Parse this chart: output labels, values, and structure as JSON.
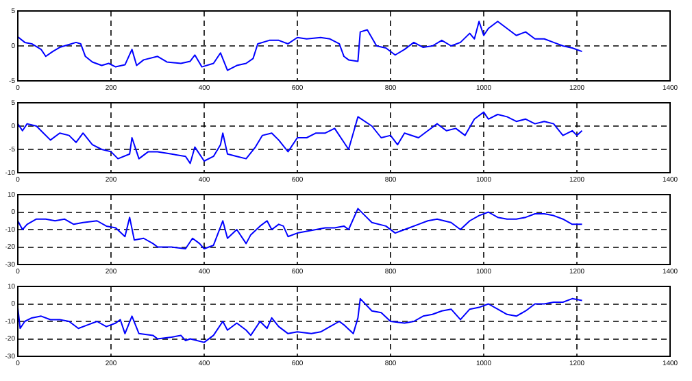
{
  "chart_data": [
    {
      "type": "line",
      "x": [
        0,
        15,
        30,
        50,
        60,
        75,
        90,
        110,
        125,
        135,
        145,
        160,
        180,
        195,
        210,
        230,
        245,
        255,
        270,
        300,
        320,
        350,
        370,
        380,
        395,
        420,
        435,
        450,
        470,
        490,
        505,
        515,
        540,
        560,
        580,
        600,
        620,
        650,
        670,
        690,
        700,
        710,
        730,
        735,
        750,
        770,
        790,
        810,
        830,
        850,
        870,
        890,
        910,
        930,
        950,
        970,
        980,
        990,
        1000,
        1010,
        1030,
        1050,
        1070,
        1090,
        1110,
        1130,
        1150,
        1170,
        1190,
        1211
      ],
      "series": [
        {
          "color": "#0000ff",
          "values": [
            1.3,
            0.5,
            0.3,
            -0.5,
            -1.5,
            -0.8,
            -0.2,
            0.2,
            0.5,
            0.3,
            -1.5,
            -2.3,
            -2.8,
            -2.5,
            -3,
            -2.7,
            -0.5,
            -2.8,
            -2,
            -1.5,
            -2.3,
            -2.5,
            -2.2,
            -1.3,
            -3,
            -2.5,
            -1,
            -3.5,
            -2.8,
            -2.5,
            -1.8,
            0.3,
            0.8,
            0.8,
            0.3,
            1.2,
            1,
            1.2,
            1,
            0.3,
            -1.5,
            -2,
            -2.2,
            2,
            2.3,
            0,
            -0.3,
            -1.3,
            -0.5,
            0.5,
            -0.2,
            0,
            0.8,
            0,
            0.5,
            1.8,
            1,
            3.5,
            1.5,
            2.5,
            3.5,
            2.5,
            1.5,
            2,
            1,
            1,
            0.5,
            0,
            -0.3,
            -0.8
          ]
        }
      ],
      "xlim": [
        0,
        1400
      ],
      "xticks": [
        0,
        200,
        400,
        600,
        800,
        1000,
        1200,
        1400
      ],
      "ylim": [
        -5,
        5
      ],
      "yticks": [
        -5,
        0,
        5
      ],
      "grid": true,
      "marker": "none",
      "line_style": "solid"
    },
    {
      "type": "line",
      "x": [
        0,
        10,
        20,
        40,
        55,
        70,
        90,
        110,
        125,
        140,
        160,
        180,
        200,
        215,
        240,
        245,
        260,
        280,
        300,
        330,
        360,
        370,
        380,
        400,
        420,
        435,
        440,
        450,
        470,
        490,
        510,
        525,
        545,
        560,
        580,
        600,
        620,
        640,
        660,
        680,
        700,
        710,
        730,
        760,
        780,
        800,
        815,
        830,
        860,
        880,
        900,
        920,
        940,
        960,
        980,
        1000,
        1010,
        1030,
        1050,
        1070,
        1090,
        1110,
        1130,
        1150,
        1170,
        1190,
        1200,
        1211
      ],
      "series": [
        {
          "color": "#0000ff",
          "values": [
            0.5,
            -1,
            0.5,
            0,
            -1.5,
            -3,
            -1.5,
            -2,
            -3.5,
            -1.5,
            -4,
            -5,
            -5.5,
            -7,
            -6,
            -2.5,
            -7,
            -5.5,
            -5.5,
            -6,
            -6.5,
            -8,
            -4.5,
            -7.5,
            -6.5,
            -4,
            -1.5,
            -6,
            -6.5,
            -7,
            -4.5,
            -2,
            -1.5,
            -3,
            -5.5,
            -2.5,
            -2.5,
            -1.5,
            -1.5,
            -0.5,
            -3.5,
            -5,
            2,
            0,
            -2.5,
            -2,
            -4,
            -1.5,
            -2.5,
            -1,
            0.5,
            -1,
            -0.5,
            -2,
            1.5,
            3,
            1.5,
            2.5,
            2,
            1,
            1.5,
            0.5,
            1,
            0.5,
            -2,
            -1,
            -2,
            -1
          ]
        }
      ],
      "xlim": [
        0,
        1400
      ],
      "xticks": [
        0,
        200,
        400,
        600,
        800,
        1000,
        1200,
        1400
      ],
      "ylim": [
        -10,
        5
      ],
      "yticks": [
        -10,
        -5,
        0,
        5
      ],
      "grid": true,
      "marker": "none",
      "line_style": "solid"
    },
    {
      "type": "line",
      "x": [
        0,
        10,
        20,
        40,
        60,
        80,
        100,
        120,
        140,
        170,
        190,
        210,
        230,
        240,
        250,
        270,
        290,
        300,
        330,
        360,
        375,
        390,
        400,
        420,
        430,
        440,
        450,
        470,
        490,
        500,
        520,
        535,
        545,
        560,
        570,
        580,
        600,
        620,
        640,
        660,
        680,
        700,
        710,
        730,
        745,
        760,
        790,
        810,
        820,
        840,
        860,
        880,
        900,
        930,
        950,
        970,
        990,
        1010,
        1030,
        1050,
        1070,
        1090,
        1110,
        1130,
        1150,
        1170,
        1190,
        1211
      ],
      "series": [
        {
          "color": "#0000ff",
          "values": [
            -5,
            -10,
            -7,
            -4,
            -4,
            -5,
            -4,
            -7,
            -6,
            -5,
            -8,
            -9,
            -14,
            -3,
            -16,
            -15,
            -18,
            -20,
            -20,
            -21,
            -15,
            -18,
            -21,
            -19,
            -12,
            -5,
            -15,
            -10,
            -18,
            -13,
            -8,
            -5,
            -10,
            -7,
            -8,
            -14,
            -12,
            -11,
            -10,
            -9,
            -9,
            -8,
            -10,
            2,
            -2,
            -6,
            -8,
            -12,
            -11,
            -9,
            -7,
            -5,
            -4,
            -6,
            -10,
            -5,
            -2,
            0,
            -3,
            -4,
            -4,
            -3,
            -1,
            -1,
            -2,
            -4,
            -7,
            -7
          ]
        }
      ],
      "xlim": [
        0,
        1400
      ],
      "xticks": [
        0,
        200,
        400,
        600,
        800,
        1000,
        1200,
        1400
      ],
      "ylim": [
        -30,
        10
      ],
      "yticks": [
        -30,
        -20,
        -10,
        0,
        10
      ],
      "grid": true,
      "marker": "none",
      "line_style": "solid"
    },
    {
      "type": "line",
      "x": [
        0,
        5,
        15,
        30,
        50,
        70,
        90,
        110,
        130,
        150,
        170,
        190,
        210,
        220,
        230,
        245,
        260,
        290,
        300,
        330,
        350,
        360,
        370,
        400,
        420,
        440,
        450,
        470,
        490,
        500,
        520,
        535,
        545,
        560,
        580,
        600,
        630,
        650,
        670,
        690,
        700,
        720,
        730,
        735,
        760,
        780,
        800,
        830,
        850,
        870,
        890,
        910,
        930,
        950,
        970,
        990,
        1010,
        1030,
        1050,
        1070,
        1090,
        1110,
        1130,
        1150,
        1170,
        1190,
        1211
      ],
      "series": [
        {
          "color": "#0000ff",
          "values": [
            -2,
            -14,
            -10,
            -8,
            -7,
            -9,
            -9,
            -10,
            -14,
            -12,
            -10,
            -13,
            -11,
            -9,
            -17,
            -7,
            -17,
            -18,
            -20,
            -19,
            -18,
            -21,
            -20,
            -22,
            -18,
            -10,
            -15,
            -11,
            -15,
            -18,
            -10,
            -14,
            -8,
            -13,
            -17,
            -16,
            -17,
            -16,
            -13,
            -10,
            -12,
            -17,
            -8,
            3,
            -4,
            -5,
            -10,
            -11,
            -10,
            -7,
            -6,
            -4,
            -3,
            -9,
            -3,
            -2,
            0,
            -3,
            -6,
            -7,
            -4,
            0,
            0,
            1,
            1,
            3,
            2
          ]
        }
      ],
      "xlim": [
        0,
        1400
      ],
      "xticks": [
        0,
        200,
        400,
        600,
        800,
        1000,
        1200,
        1400
      ],
      "ylim": [
        -30,
        10
      ],
      "yticks": [
        -30,
        -20,
        -10,
        0,
        10
      ],
      "grid": true,
      "marker": "none",
      "line_style": "solid"
    }
  ]
}
